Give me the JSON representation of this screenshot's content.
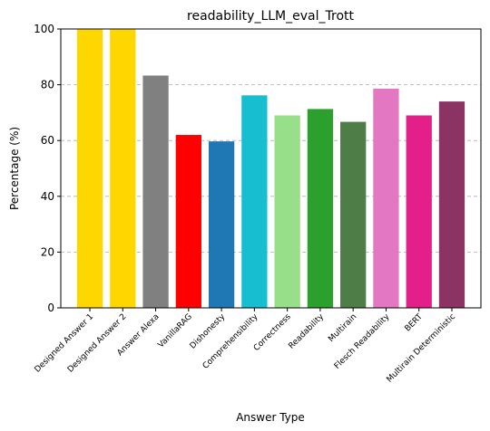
{
  "chart_data": {
    "type": "bar",
    "title": "readability_LLM_eval_Trott",
    "xlabel": "Answer Type",
    "ylabel": "Percentage (%)",
    "ylim": [
      0,
      100
    ],
    "yticks": [
      "0",
      "20",
      "40",
      "60",
      "80",
      "100"
    ],
    "grid": "horizontal dashed",
    "categories": [
      "Designed Answer 1",
      "Designed Answer 2",
      "Answer Alexa",
      "VanillaRAG",
      "Dishonesty",
      "Comprehensibility",
      "Correctness",
      "Readability",
      "Multirain",
      "Flesch Readability",
      "BERT",
      "Multirain Deterministic"
    ],
    "values": [
      100,
      100,
      83.3,
      62.0,
      59.7,
      76.2,
      69.0,
      71.3,
      66.7,
      78.6,
      69.0,
      74.0
    ],
    "colors": [
      "#FFD700",
      "#FFD700",
      "#808080",
      "#FF0000",
      "#1F77B4",
      "#17BECF",
      "#98DF8A",
      "#2CA02C",
      "#4E7D47",
      "#E377C2",
      "#E31F8A",
      "#8B3464"
    ]
  }
}
